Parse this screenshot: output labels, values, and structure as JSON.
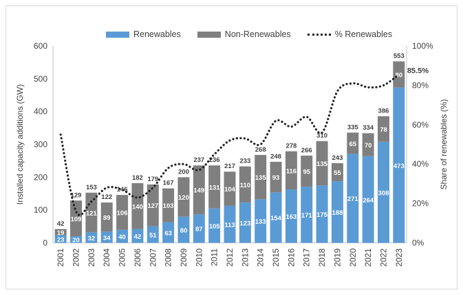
{
  "chart_data": {
    "type": "bar",
    "stacked": true,
    "categories": [
      "2001",
      "2002",
      "2003",
      "2004",
      "2005",
      "2006",
      "2007",
      "2008",
      "2009",
      "2010",
      "2011",
      "2012",
      "2013",
      "2014",
      "2015",
      "2016",
      "2017",
      "2018",
      "2019",
      "2020",
      "2021",
      "2022",
      "2023"
    ],
    "series": [
      {
        "name": "Renewables",
        "color": "#5b9bd5",
        "values": [
          23,
          20,
          32,
          34,
          40,
          42,
          51,
          63,
          80,
          87,
          105,
          113,
          123,
          133,
          154,
          163,
          171,
          175,
          188,
          271,
          264,
          308,
          473
        ]
      },
      {
        "name": "Non-Renewables",
        "color": "#7f7f7f",
        "values": [
          19,
          109,
          121,
          89,
          106,
          140,
          127,
          103,
          120,
          149,
          131,
          104,
          110,
          135,
          93,
          116,
          95,
          135,
          55,
          65,
          70,
          78,
          80
        ]
      }
    ],
    "totals": [
      42,
      129,
      153,
      122,
      146,
      182,
      179,
      167,
      200,
      237,
      236,
      217,
      233,
      268,
      248,
      278,
      266,
      310,
      243,
      335,
      334,
      386,
      553
    ],
    "line_series": {
      "name": "% Renewables",
      "axis": "right",
      "color": "#222222",
      "values": [
        55,
        16,
        21,
        28,
        27,
        23,
        28,
        38,
        40,
        37,
        45,
        52,
        53,
        50,
        62,
        59,
        64,
        56,
        77,
        81,
        79,
        80,
        85.5
      ],
      "end_label": "85.5%"
    },
    "ylabel": "Installed capacity additions (GW)",
    "ylim": [
      0,
      600
    ],
    "yticks": [
      0,
      100,
      200,
      300,
      400,
      500,
      600
    ],
    "y2label": "Share of renewables (%)",
    "y2lim": [
      0,
      100
    ],
    "y2ticks": [
      "0%",
      "20%",
      "40%",
      "60%",
      "80%",
      "100%"
    ],
    "legend_position": "top",
    "grid": false
  }
}
